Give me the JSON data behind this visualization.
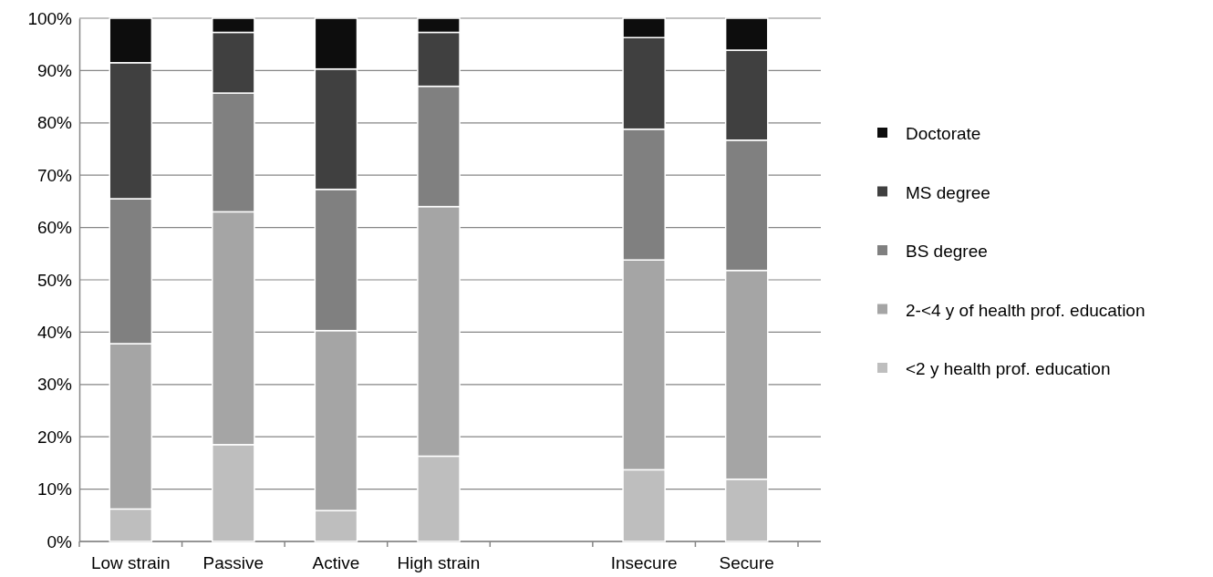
{
  "chart_data": {
    "type": "bar",
    "stacked": true,
    "categories": [
      "Low strain",
      "Passive",
      "Active",
      "High strain",
      null,
      "Insecure",
      "Secure"
    ],
    "series": [
      {
        "name": "<2 y health prof. education",
        "color": "#bebebe",
        "values": [
          6.2,
          18.5,
          5.9,
          16.3,
          null,
          13.7,
          11.9
        ]
      },
      {
        "name": "2-<4 y of health prof. education",
        "color": "#a5a5a5",
        "values": [
          31.6,
          44.5,
          34.4,
          47.7,
          null,
          40.1,
          39.9
        ]
      },
      {
        "name": "BS degree",
        "color": "#808080",
        "values": [
          27.7,
          22.7,
          27.0,
          23.0,
          null,
          25.0,
          24.9
        ]
      },
      {
        "name": "MS degree",
        "color": "#404040",
        "values": [
          26.0,
          11.6,
          23.0,
          10.3,
          null,
          17.5,
          17.2
        ]
      },
      {
        "name": "Doctorate",
        "color": "#0d0d0d",
        "values": [
          8.5,
          2.7,
          9.7,
          2.7,
          null,
          3.7,
          6.1
        ]
      }
    ],
    "ylim": [
      0,
      100
    ],
    "yticks": [
      {
        "value": 0,
        "label": "0%"
      },
      {
        "value": 10,
        "label": "10%"
      },
      {
        "value": 20,
        "label": "20%"
      },
      {
        "value": 30,
        "label": "30%"
      },
      {
        "value": 40,
        "label": "40%"
      },
      {
        "value": 50,
        "label": "50%"
      },
      {
        "value": 60,
        "label": "60%"
      },
      {
        "value": 70,
        "label": "70%"
      },
      {
        "value": 80,
        "label": "80%"
      },
      {
        "value": 90,
        "label": "90%"
      },
      {
        "value": 100,
        "label": "100%"
      }
    ],
    "grid": "y",
    "legend": "right"
  }
}
